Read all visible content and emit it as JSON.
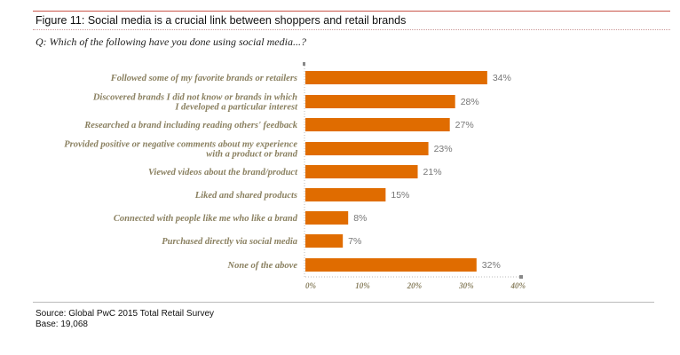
{
  "header": {
    "title": "Figure 11: Social media is a crucial link between shoppers and retail brands",
    "question": "Q: Which of the following have you done using social media...?"
  },
  "footer": {
    "source": "Source: Global PwC 2015 Total Retail Survey",
    "base": "Base: 19,068"
  },
  "chart_data": {
    "type": "bar",
    "orientation": "horizontal",
    "categories": [
      [
        "Followed some of my favorite brands or retailers"
      ],
      [
        "Discovered brands I did not know or brands in which",
        "I developed a particular interest"
      ],
      [
        "Researched a brand including reading others' feedback"
      ],
      [
        "Provided positive or negative comments about my experience",
        "with a product or brand"
      ],
      [
        "Viewed videos about the brand/product"
      ],
      [
        "Liked and shared products"
      ],
      [
        "Connected with people like me who like a brand"
      ],
      [
        "Purchased directly via social media"
      ],
      [
        "None of the above"
      ]
    ],
    "values": [
      34,
      28,
      27,
      23,
      21,
      15,
      8,
      7,
      32
    ],
    "value_labels": [
      "34%",
      "28%",
      "27%",
      "23%",
      "21%",
      "15%",
      "8%",
      "7%",
      "32%"
    ],
    "xlim": [
      0,
      40
    ],
    "ticks": [
      "0%",
      "10%",
      "20%",
      "30%",
      "40%"
    ],
    "colors": {
      "bar": "#e06c00"
    }
  }
}
